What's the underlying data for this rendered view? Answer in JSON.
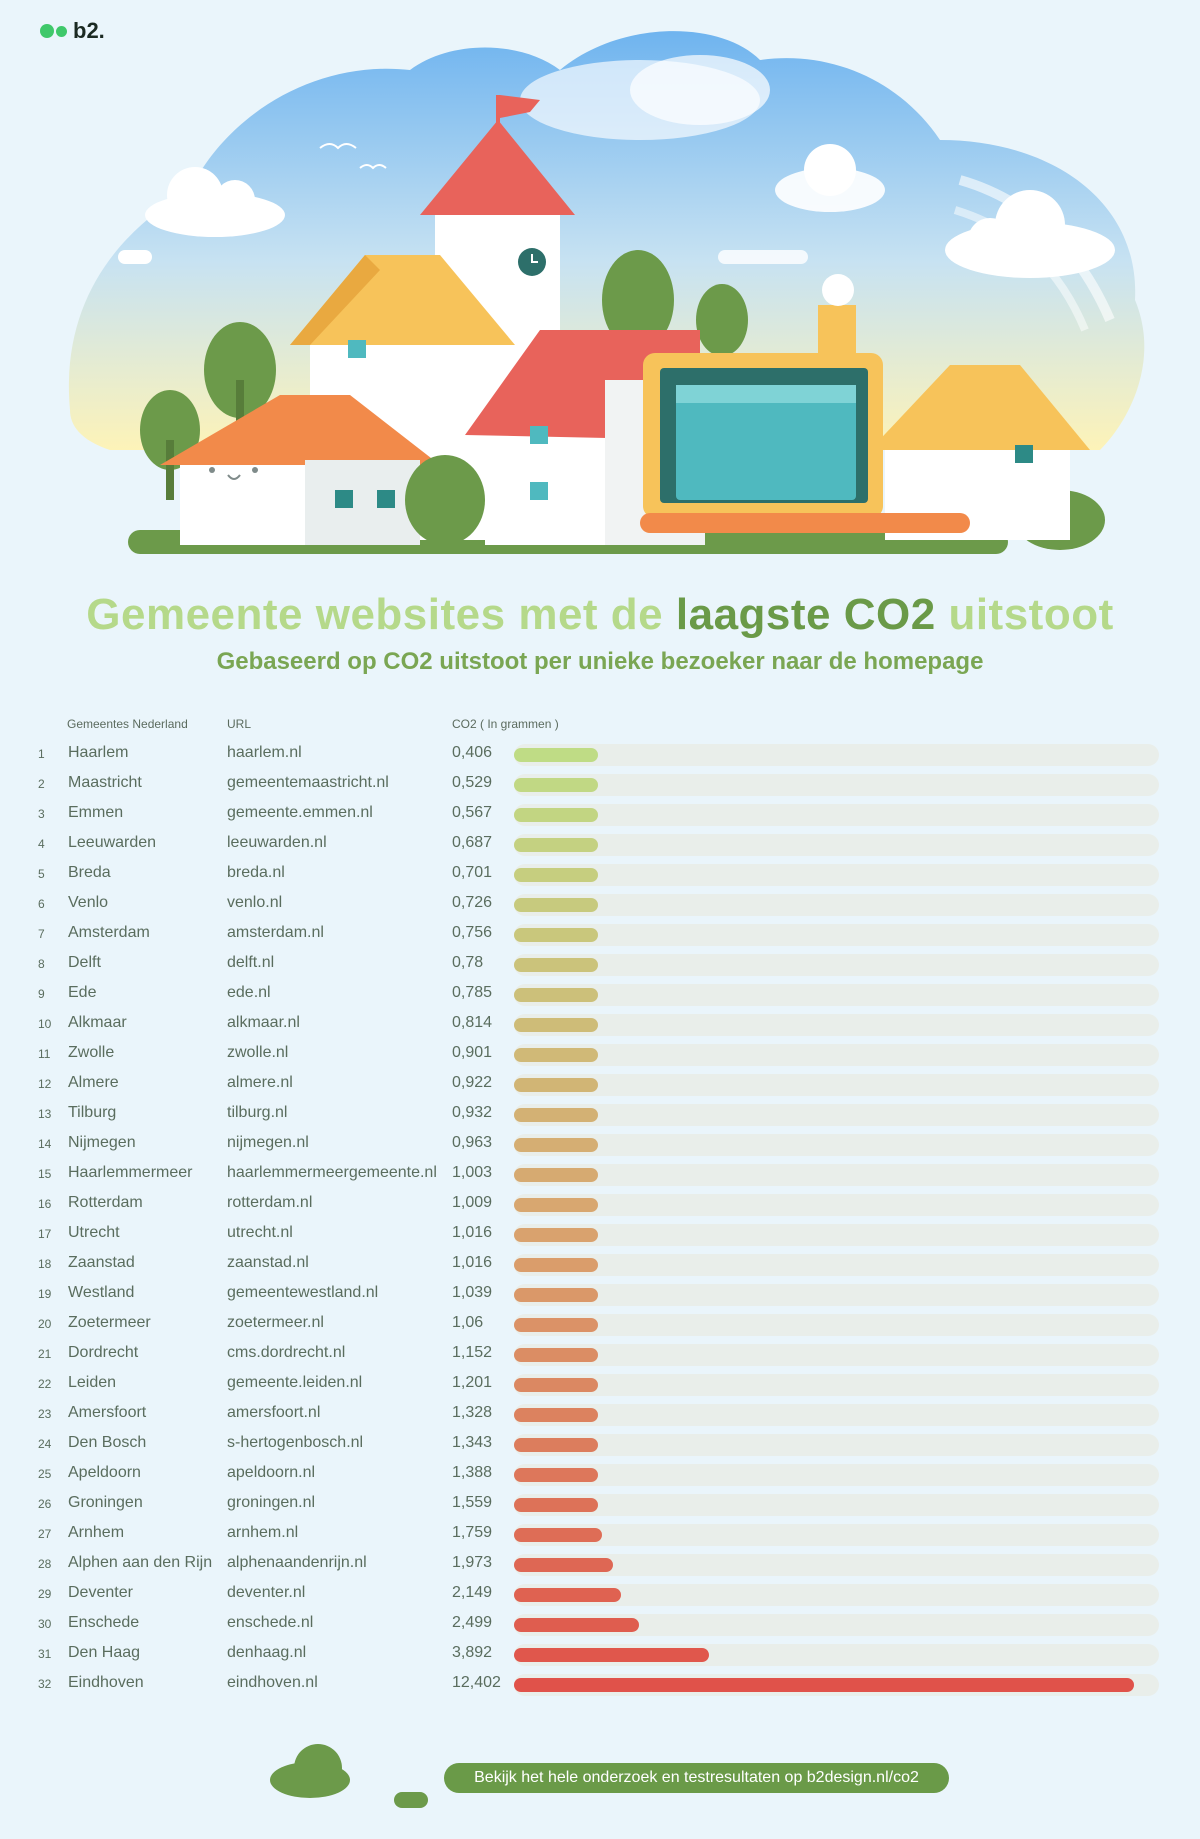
{
  "brand": {
    "logo_text": "b2."
  },
  "title_parts": {
    "before": "Gemeente websites met de ",
    "highlight": "laagste CO2",
    "after": " uitstoot"
  },
  "subtitle": "Gebaseerd op CO2 uitstoot per unieke bezoeker naar de homepage",
  "headers": {
    "municipality": "Gemeentes Nederland",
    "url": "URL",
    "co2": "CO2 ( In grammen )"
  },
  "footer": {
    "cta": "Bekijk het hele onderzoek en testresultaten op b2design.nl/co2"
  },
  "chart_data": {
    "type": "bar",
    "orientation": "horizontal",
    "title": "Gemeente websites met de laagste CO2 uitstoot",
    "subtitle": "Gebaseerd op CO2 uitstoot per unieke bezoeker naar de homepage",
    "value_label": "CO2 ( In grammen )",
    "xlim": [
      0,
      12.9
    ],
    "rows": [
      {
        "rank": "1",
        "name": "Haarlem",
        "url": "haarlem.nl",
        "label": "0,406",
        "value": 0.406
      },
      {
        "rank": "2",
        "name": "Maastricht",
        "url": "gemeentemaastricht.nl",
        "label": "0,529",
        "value": 0.529
      },
      {
        "rank": "3",
        "name": "Emmen",
        "url": "gemeente.emmen.nl",
        "label": "0,567",
        "value": 0.567
      },
      {
        "rank": "4",
        "name": "Leeuwarden",
        "url": "leeuwarden.nl",
        "label": "0,687",
        "value": 0.687
      },
      {
        "rank": "5",
        "name": "Breda",
        "url": "breda.nl",
        "label": "0,701",
        "value": 0.701
      },
      {
        "rank": "6",
        "name": "Venlo",
        "url": "venlo.nl",
        "label": "0,726",
        "value": 0.726
      },
      {
        "rank": "7",
        "name": "Amsterdam",
        "url": "amsterdam.nl",
        "label": "0,756",
        "value": 0.756
      },
      {
        "rank": "8",
        "name": "Delft",
        "url": "delft.nl",
        "label": "0,78",
        "value": 0.78
      },
      {
        "rank": "9",
        "name": "Ede",
        "url": "ede.nl",
        "label": "0,785",
        "value": 0.785
      },
      {
        "rank": "10",
        "name": "Alkmaar",
        "url": "alkmaar.nl",
        "label": "0,814",
        "value": 0.814
      },
      {
        "rank": "11",
        "name": "Zwolle",
        "url": "zwolle.nl",
        "label": "0,901",
        "value": 0.901
      },
      {
        "rank": "12",
        "name": "Almere",
        "url": "almere.nl",
        "label": "0,922",
        "value": 0.922
      },
      {
        "rank": "13",
        "name": "Tilburg",
        "url": "tilburg.nl",
        "label": "0,932",
        "value": 0.932
      },
      {
        "rank": "14",
        "name": "Nijmegen",
        "url": "nijmegen.nl",
        "label": "0,963",
        "value": 0.963
      },
      {
        "rank": "15",
        "name": "Haarlemmermeer",
        "url": "haarlemmermeergemeente.nl",
        "label": "1,003",
        "value": 1.003
      },
      {
        "rank": "16",
        "name": "Rotterdam",
        "url": "rotterdam.nl",
        "label": "1,009",
        "value": 1.009
      },
      {
        "rank": "17",
        "name": "Utrecht",
        "url": "utrecht.nl",
        "label": "1,016",
        "value": 1.016
      },
      {
        "rank": "18",
        "name": "Zaanstad",
        "url": "zaanstad.nl",
        "label": "1,016",
        "value": 1.016
      },
      {
        "rank": "19",
        "name": "Westland",
        "url": "gemeentewestland.nl",
        "label": "1,039",
        "value": 1.039
      },
      {
        "rank": "20",
        "name": "Zoetermeer",
        "url": "zoetermeer.nl",
        "label": "1,06",
        "value": 1.06
      },
      {
        "rank": "21",
        "name": "Dordrecht",
        "url": "cms.dordrecht.nl",
        "label": "1,152",
        "value": 1.152
      },
      {
        "rank": "22",
        "name": "Leiden",
        "url": "gemeente.leiden.nl",
        "label": "1,201",
        "value": 1.201
      },
      {
        "rank": "23",
        "name": "Amersfoort",
        "url": "amersfoort.nl",
        "label": "1,328",
        "value": 1.328
      },
      {
        "rank": "24",
        "name": "Den Bosch",
        "url": "s-hertogenbosch.nl",
        "label": "1,343",
        "value": 1.343
      },
      {
        "rank": "25",
        "name": "Apeldoorn",
        "url": "apeldoorn.nl",
        "label": "1,388",
        "value": 1.388
      },
      {
        "rank": "26",
        "name": "Groningen",
        "url": "groningen.nl",
        "label": "1,559",
        "value": 1.559
      },
      {
        "rank": "27",
        "name": "Arnhem",
        "url": "arnhem.nl",
        "label": "1,759",
        "value": 1.759
      },
      {
        "rank": "28",
        "name": "Alphen aan den Rijn",
        "url": "alphenaandenrijn.nl",
        "label": "1,973",
        "value": 1.973
      },
      {
        "rank": "29",
        "name": "Deventer",
        "url": "deventer.nl",
        "label": "2,149",
        "value": 2.149
      },
      {
        "rank": "30",
        "name": "Enschede",
        "url": "enschede.nl",
        "label": "2,499",
        "value": 2.499
      },
      {
        "rank": "31",
        "name": "Den Haag",
        "url": "denhaag.nl",
        "label": "3,892",
        "value": 3.892
      },
      {
        "rank": "32",
        "name": "Eindhoven",
        "url": "eindhoven.nl",
        "label": "12,402",
        "value": 12.402
      }
    ],
    "colors": {
      "low": "#bfdc85",
      "mid": "#d9a56f",
      "high": "#e0524a",
      "track": "#e9eeea"
    }
  }
}
